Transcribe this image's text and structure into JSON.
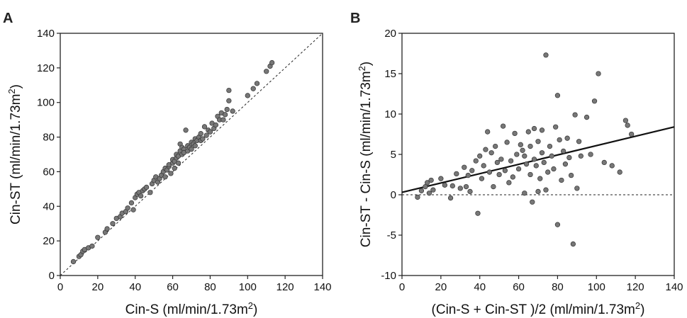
{
  "chart_data": [
    {
      "panel": "A",
      "type": "scatter",
      "xlabel": "Cin-S (ml/min/1.73m2)",
      "ylabel": "Cin-ST (ml/min/1.73m2)",
      "xlabel_parts": {
        "main": "Cin-S (ml/min/1.73m",
        "sup": "2",
        "end": ")"
      },
      "ylabel_parts": {
        "main": "Cin-ST (ml/min/1.73m",
        "sup": "2",
        "end": ")"
      },
      "xlim": [
        0,
        140
      ],
      "ylim": [
        0,
        140
      ],
      "xticks": [
        0,
        20,
        40,
        60,
        80,
        100,
        120,
        140
      ],
      "yticks": [
        0,
        20,
        40,
        60,
        80,
        100,
        120,
        140
      ],
      "reference_line": {
        "style": "dashed",
        "points": [
          [
            0,
            0
          ],
          [
            140,
            140
          ]
        ]
      },
      "marker_color": "#777777",
      "x": [
        7,
        10,
        11,
        12,
        13,
        15,
        17,
        20,
        24,
        25,
        28,
        30,
        32,
        33,
        35,
        36,
        38,
        39,
        40,
        41,
        42,
        43,
        44,
        45,
        46,
        48,
        49,
        50,
        51,
        52,
        53,
        54,
        55,
        56,
        56,
        57,
        58,
        58,
        59,
        60,
        60,
        61,
        61,
        62,
        62,
        63,
        63,
        64,
        64,
        65,
        65,
        66,
        66,
        67,
        68,
        68,
        69,
        70,
        70,
        71,
        72,
        72,
        73,
        74,
        75,
        75,
        76,
        77,
        78,
        79,
        80,
        81,
        82,
        83,
        84,
        85,
        86,
        87,
        88,
        89,
        90,
        90,
        92,
        100,
        103,
        105,
        110,
        112,
        113
      ],
      "y": [
        8,
        11,
        12,
        14,
        15,
        16,
        17,
        22,
        25,
        27,
        30,
        33,
        34,
        36,
        37,
        39,
        42,
        38,
        45,
        47,
        48,
        46,
        49,
        50,
        51,
        48,
        53,
        55,
        57,
        54,
        56,
        58,
        60,
        57,
        62,
        61,
        63,
        64,
        59,
        65,
        67,
        66,
        62,
        68,
        70,
        69,
        65,
        72,
        76,
        74,
        70,
        73,
        71,
        84,
        75,
        72,
        74,
        77,
        73,
        76,
        75,
        79,
        78,
        80,
        82,
        78,
        79,
        86,
        81,
        84,
        83,
        88,
        85,
        87,
        92,
        90,
        94,
        90,
        93,
        96,
        101,
        107,
        95,
        104,
        108,
        111,
        118,
        121,
        123
      ]
    },
    {
      "panel": "B",
      "type": "scatter",
      "xlabel": "(Cin-S + Cin-ST )/2 (ml/min/1.73m2)",
      "ylabel": "Cin-ST - Cin-S (ml/min/1.73m2)",
      "xlabel_parts": {
        "main": "(Cin-S + Cin-ST )/2 (ml/min/1.73m",
        "sup": "2",
        "end": ")"
      },
      "ylabel_parts": {
        "main": "Cin-ST - Cin-S (ml/min/1.73m",
        "sup": "2",
        "end": ")"
      },
      "xlim": [
        0,
        140
      ],
      "ylim": [
        -10,
        20
      ],
      "xticks": [
        0,
        20,
        40,
        60,
        80,
        100,
        120,
        140
      ],
      "yticks": [
        -10,
        -5,
        0,
        5,
        10,
        15,
        20
      ],
      "reference_line": {
        "style": "dashed",
        "points": [
          [
            0,
            0
          ],
          [
            140,
            0
          ]
        ]
      },
      "regression_line": {
        "style": "solid",
        "points": [
          [
            0,
            0.3
          ],
          [
            140,
            8.4
          ]
        ]
      },
      "marker_color": "#777777",
      "x": [
        8,
        10,
        12,
        13,
        14,
        15,
        16,
        20,
        22,
        25,
        26,
        28,
        30,
        32,
        33,
        34,
        35,
        36,
        38,
        39,
        40,
        41,
        42,
        43,
        44,
        45,
        46,
        47,
        48,
        49,
        50,
        51,
        52,
        53,
        54,
        55,
        56,
        57,
        58,
        59,
        60,
        61,
        62,
        63,
        63,
        64,
        65,
        66,
        66,
        67,
        68,
        68,
        69,
        70,
        70,
        71,
        72,
        72,
        73,
        74,
        74,
        75,
        76,
        77,
        78,
        79,
        80,
        80,
        81,
        82,
        83,
        84,
        85,
        86,
        87,
        88,
        89,
        90,
        91,
        92,
        95,
        97,
        99,
        101,
        104,
        108,
        112,
        115,
        116,
        118
      ],
      "y": [
        -0.3,
        0.5,
        1.0,
        1.5,
        0.2,
        1.8,
        0.6,
        2.0,
        1.2,
        -0.4,
        1.1,
        2.6,
        0.8,
        3.4,
        1.0,
        2.4,
        0.4,
        3.0,
        4.2,
        -2.3,
        4.8,
        2.0,
        3.6,
        5.6,
        7.8,
        2.8,
        5.2,
        1.0,
        6.0,
        4.0,
        2.5,
        4.4,
        8.5,
        3.0,
        6.5,
        1.5,
        4.2,
        2.2,
        7.6,
        5.0,
        3.2,
        6.2,
        5.5,
        4.8,
        0.2,
        3.8,
        7.8,
        6.0,
        2.5,
        -0.9,
        4.4,
        8.2,
        3.6,
        6.6,
        0.4,
        2.0,
        5.2,
        8.0,
        4.0,
        0.6,
        17.3,
        2.8,
        6.0,
        4.8,
        3.2,
        8.4,
        12.3,
        -3.7,
        6.8,
        1.8,
        5.4,
        3.8,
        7.0,
        4.6,
        2.4,
        -6.1,
        9.9,
        0.8,
        6.6,
        4.8,
        9.6,
        5.0,
        11.6,
        15.0,
        4.0,
        3.6,
        2.8,
        9.2,
        8.6,
        7.5
      ]
    }
  ]
}
